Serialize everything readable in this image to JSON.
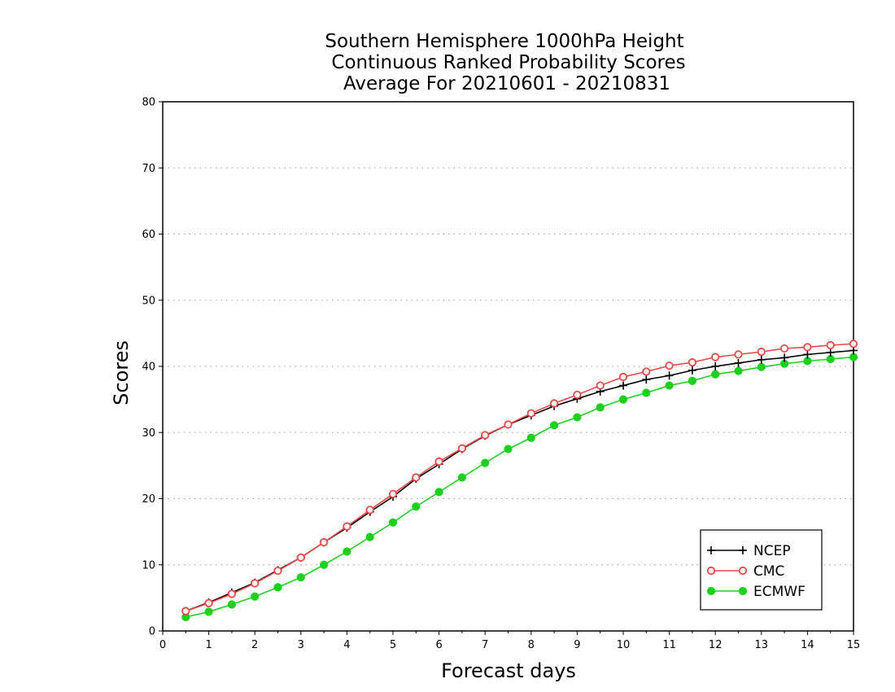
{
  "chart_data": {
    "type": "line",
    "title": [
      "Southern Hemisphere 1000hPa Height",
      "Continuous Ranked Probability Scores",
      "Average For 20210601 - 20210831"
    ],
    "xlabel": "Forecast days",
    "ylabel": "Scores",
    "xlim": [
      0,
      15
    ],
    "ylim": [
      0,
      80
    ],
    "xticks": [
      "0",
      "1",
      "2",
      "3",
      "4",
      "5",
      "6",
      "7",
      "8",
      "9",
      "10",
      "11",
      "12",
      "13",
      "14",
      "15"
    ],
    "yticks": [
      "0",
      "10",
      "20",
      "30",
      "40",
      "50",
      "60",
      "70",
      "80"
    ],
    "grid": "horizontal dotted",
    "legend_position": "bottom-right",
    "x": [
      0.5,
      1,
      1.5,
      2,
      2.5,
      3,
      3.5,
      4,
      4.5,
      5,
      5.5,
      6,
      6.5,
      7,
      7.5,
      8,
      8.5,
      9,
      9.5,
      10,
      10.5,
      11,
      11.5,
      12,
      12.5,
      13,
      13.5,
      14,
      14.5,
      15
    ],
    "series": [
      {
        "name": "NCEP",
        "color": "#000000",
        "marker": "plus",
        "values": [
          3.0,
          4.3,
          5.8,
          7.3,
          9.2,
          11.1,
          13.4,
          15.6,
          18.0,
          20.3,
          23.0,
          25.2,
          27.5,
          29.5,
          31.2,
          32.6,
          34.0,
          35.1,
          36.2,
          37.1,
          38.0,
          38.6,
          39.4,
          40.0,
          40.5,
          41.0,
          41.3,
          41.8,
          42.1,
          42.4
        ]
      },
      {
        "name": "CMC",
        "color": "#e84848",
        "marker": "open-circle",
        "values": [
          3.0,
          4.2,
          5.6,
          7.2,
          9.1,
          11.1,
          13.4,
          15.8,
          18.3,
          20.7,
          23.2,
          25.6,
          27.6,
          29.6,
          31.2,
          32.9,
          34.4,
          35.7,
          37.1,
          38.4,
          39.2,
          40.1,
          40.6,
          41.4,
          41.8,
          42.2,
          42.7,
          42.9,
          43.2,
          43.4
        ]
      },
      {
        "name": "ECMWF",
        "color": "#1ed01e",
        "marker": "filled-circle",
        "values": [
          2.1,
          2.9,
          4.0,
          5.2,
          6.6,
          8.1,
          10.0,
          12.0,
          14.2,
          16.4,
          18.8,
          21.0,
          23.2,
          25.4,
          27.5,
          29.2,
          31.1,
          32.3,
          33.8,
          35.0,
          36.0,
          37.1,
          37.8,
          38.8,
          39.3,
          39.9,
          40.4,
          40.8,
          41.1,
          41.4
        ]
      }
    ]
  }
}
